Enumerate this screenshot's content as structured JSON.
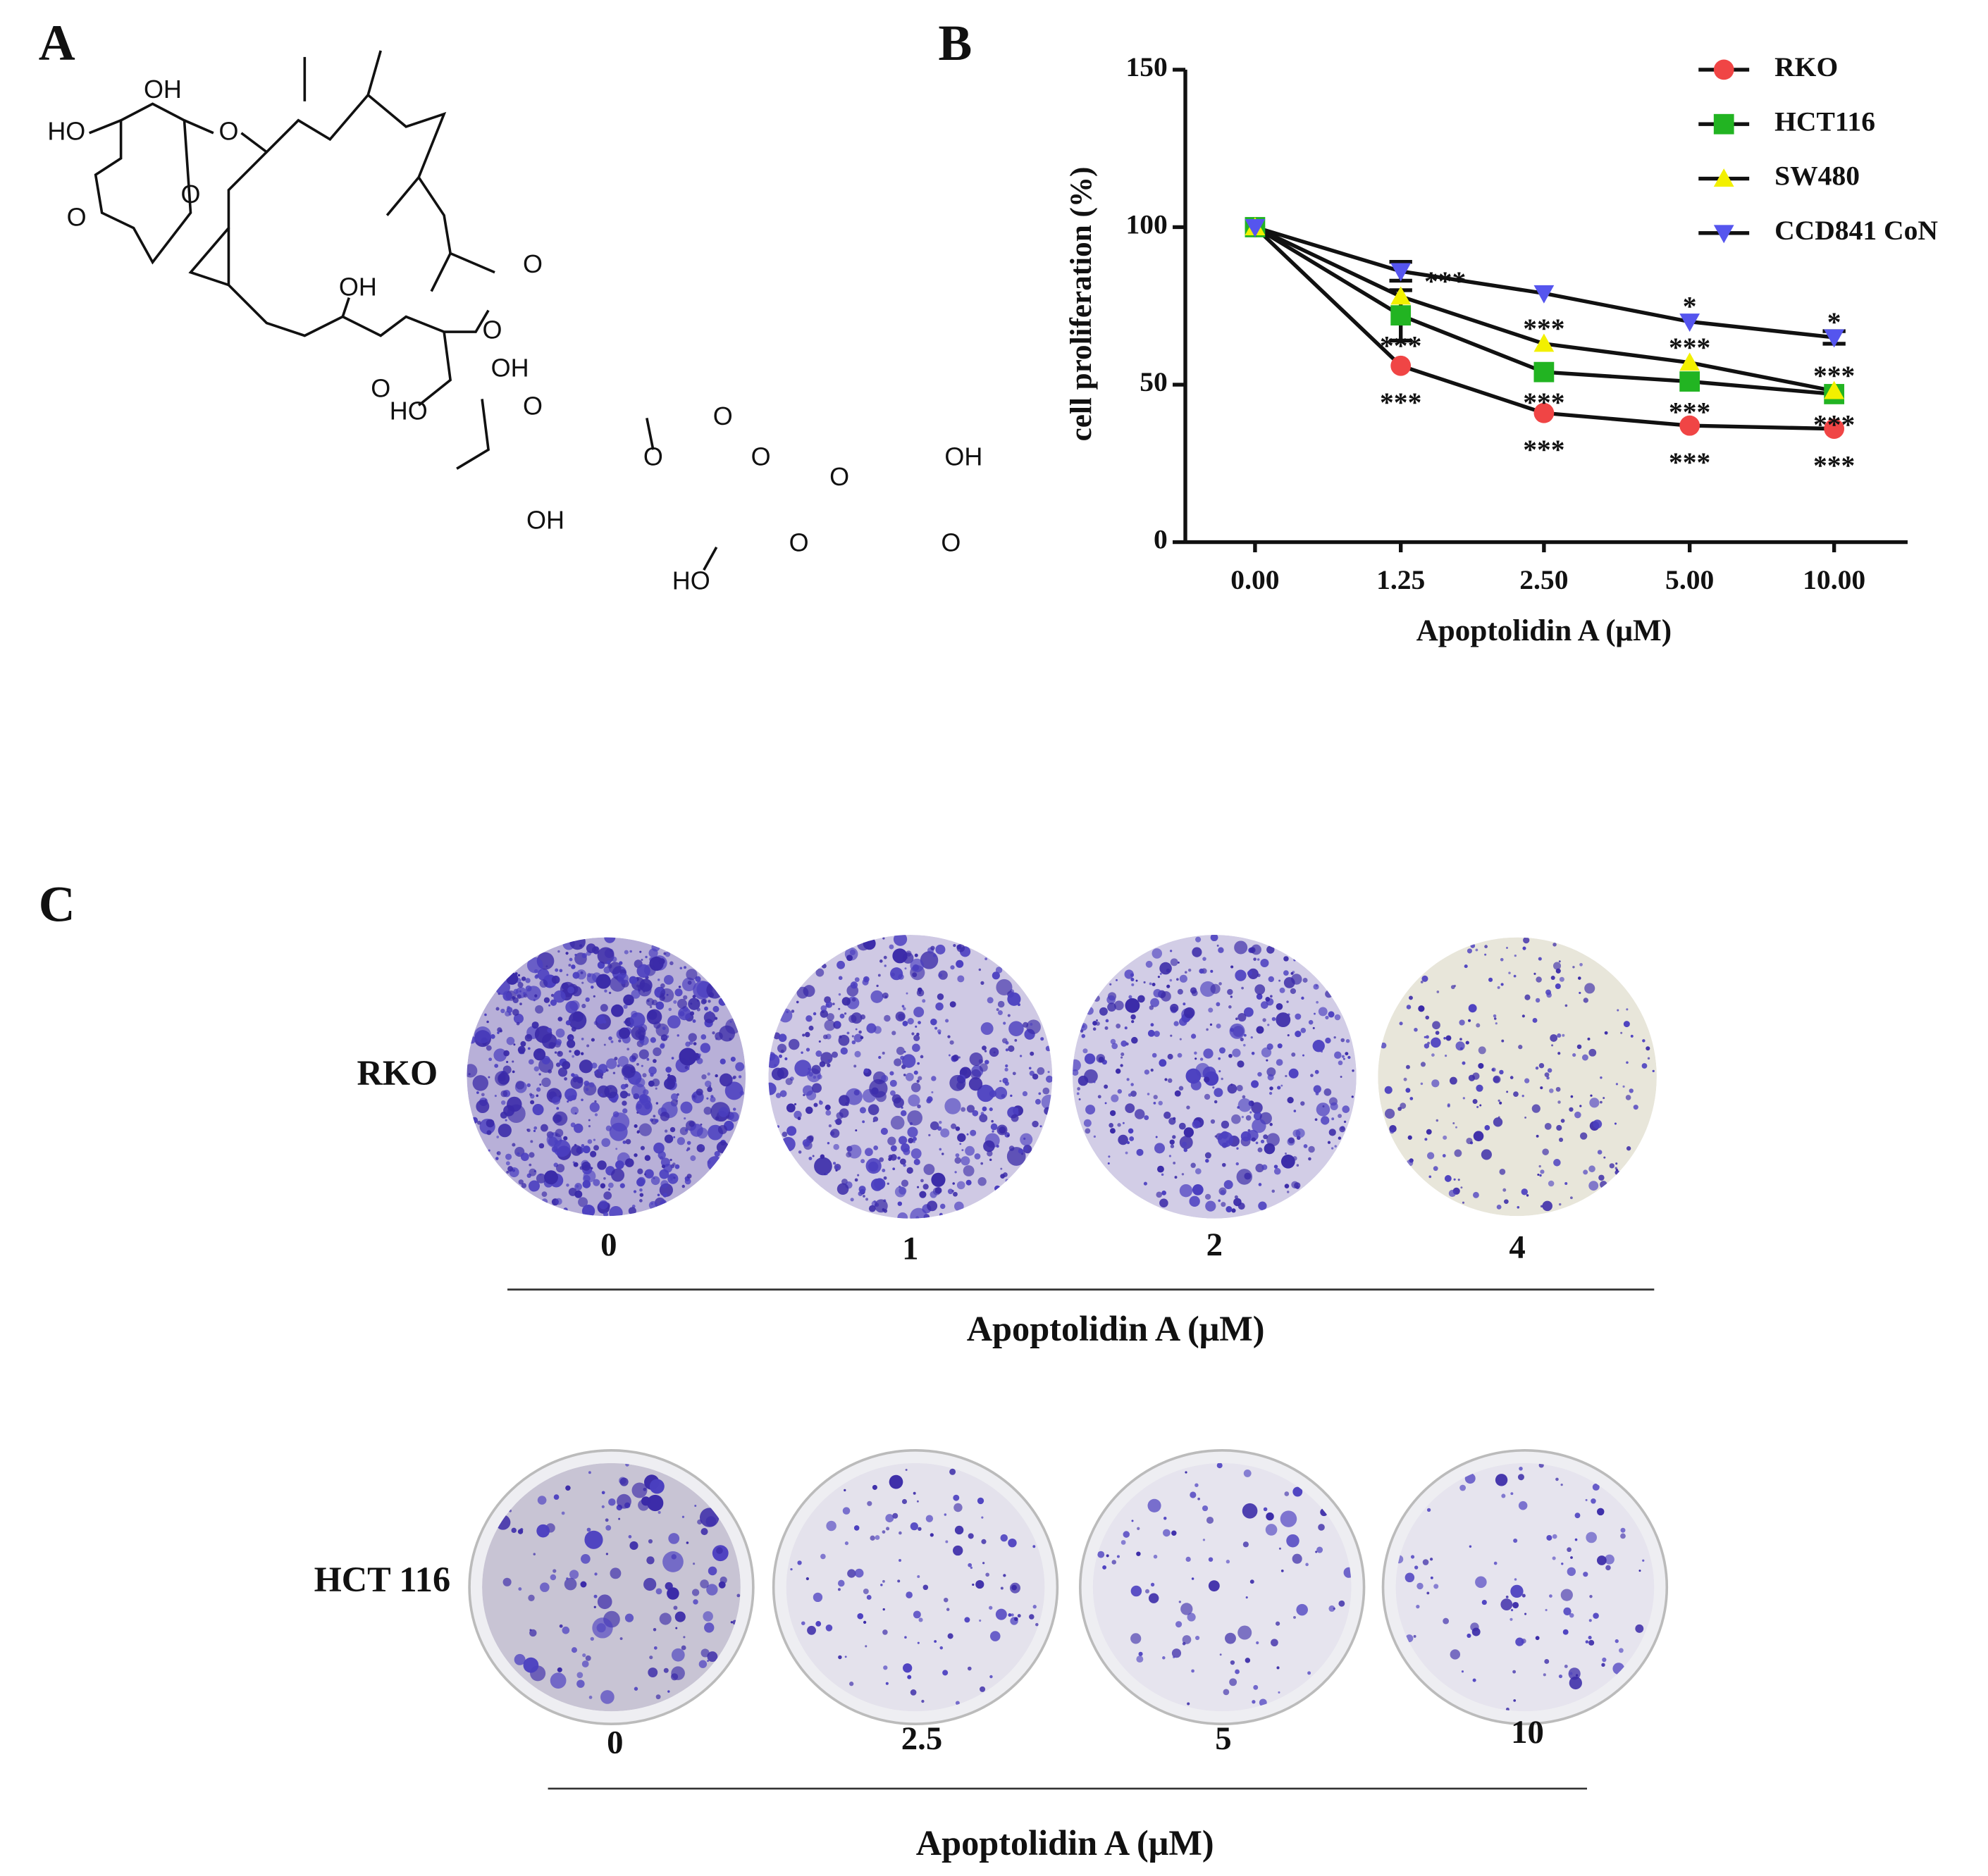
{
  "panel_a": {
    "label": "A",
    "atom_labels": [
      "OH",
      "HO",
      "O",
      "O",
      "O",
      "O",
      "OH",
      "O",
      "OH",
      "O",
      "O",
      "HO",
      "O",
      "O",
      "O",
      "O",
      "OH",
      "O",
      "OH",
      "HO",
      "O"
    ]
  },
  "chart_data": {
    "type": "line",
    "panel_label": "B",
    "x_label": "Apoptolidin A (μM)",
    "y_label": "cell proliferation (%)",
    "categories": [
      "0.00",
      "1.25",
      "2.50",
      "5.00",
      "10.00"
    ],
    "ylim": [
      0,
      150
    ],
    "yticks": [
      0,
      50,
      100,
      150
    ],
    "legend": "top-right",
    "series": [
      {
        "name": "RKO",
        "color": "#f04545",
        "marker": "circle",
        "values": [
          100,
          56,
          41,
          37,
          36
        ],
        "significance": [
          null,
          "***",
          "***",
          "***",
          "***"
        ]
      },
      {
        "name": "HCT116",
        "color": "#22b422",
        "marker": "square",
        "values": [
          100,
          72,
          54,
          51,
          47
        ],
        "errors": [
          null,
          8,
          null,
          null,
          null
        ],
        "significance": [
          null,
          "***",
          "***",
          "***",
          "***"
        ]
      },
      {
        "name": "SW480",
        "color": "#f2f000",
        "marker": "triangle-up",
        "values": [
          100,
          78,
          63,
          57,
          48
        ],
        "significance": [
          null,
          "***",
          "***",
          "***",
          "***"
        ]
      },
      {
        "name": "CCD841 CoN",
        "color": "#5555ee",
        "marker": "triangle-down",
        "values": [
          100,
          86,
          79,
          70,
          65
        ],
        "errors": [
          null,
          3,
          null,
          null,
          2
        ],
        "significance": [
          null,
          null,
          null,
          "*",
          "*"
        ]
      }
    ]
  },
  "panel_c": {
    "label": "C",
    "rows": [
      {
        "name": "RKO",
        "doses": [
          "0",
          "1",
          "2",
          "4"
        ],
        "axis_label": "Apoptolidin A (μM)"
      },
      {
        "name": "HCT 116",
        "doses": [
          "0",
          "2.5",
          "5",
          "10"
        ],
        "axis_label": "Apoptolidin A (μM)"
      }
    ]
  }
}
